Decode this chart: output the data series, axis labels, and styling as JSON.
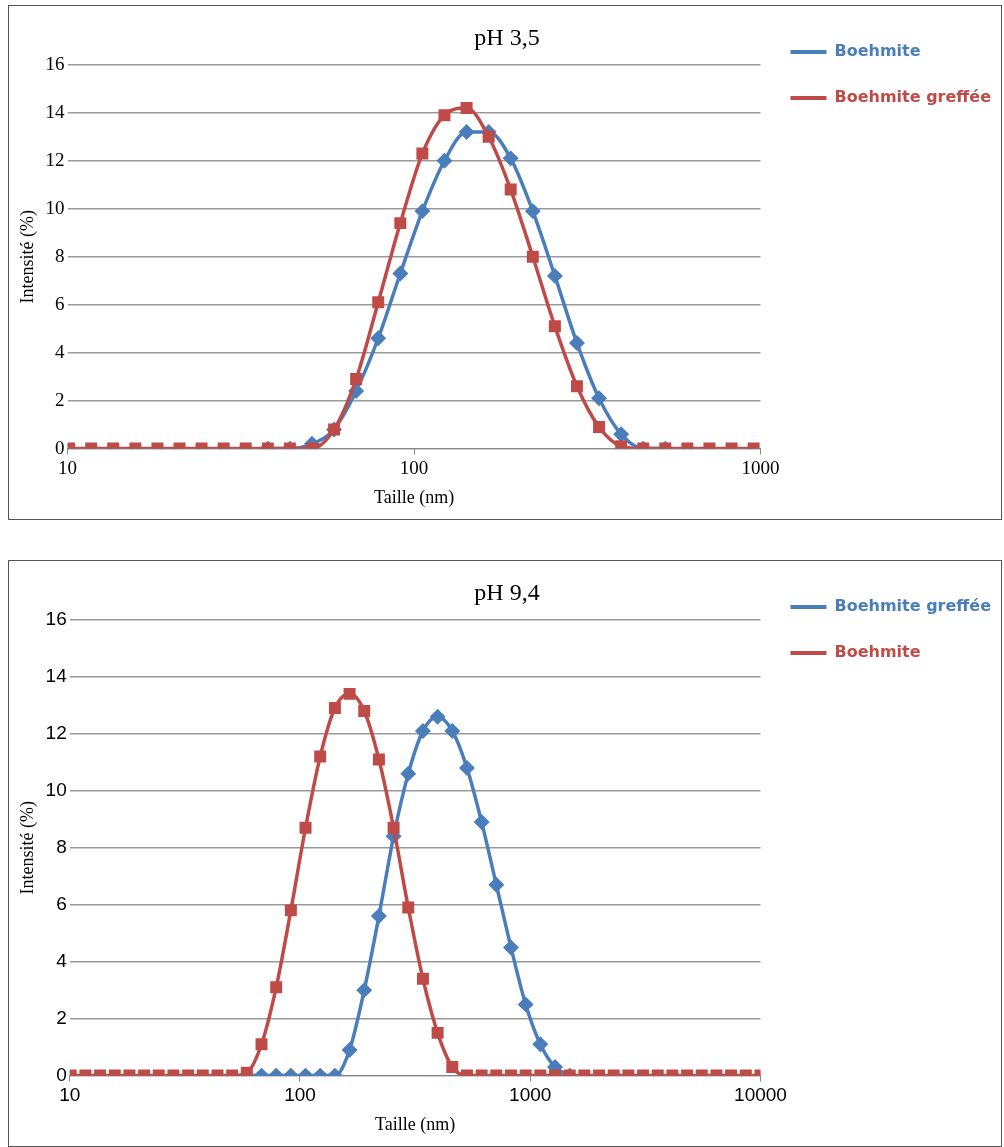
{
  "chart_data": [
    {
      "type": "line",
      "title": "pH 3,5",
      "xlabel": "Taille (nm)",
      "ylabel": "Intensité (%)",
      "log": "x",
      "xlim": [
        10,
        1000
      ],
      "xticks": [
        10,
        100,
        1000
      ],
      "ylim": [
        0,
        16
      ],
      "yticks": [
        0,
        2,
        4,
        6,
        8,
        10,
        12,
        14,
        16
      ],
      "grid": "y",
      "legend": "right",
      "x": [
        10.1,
        11.7,
        13.54,
        15.69,
        18.17,
        21.04,
        24.36,
        28.21,
        32.67,
        37.84,
        43.82,
        50.75,
        58.77,
        68.06,
        78.82,
        91.28,
        105.7,
        122.4,
        141.8,
        164.2,
        190.1,
        220.2,
        255,
        295.3,
        342,
        396.1,
        458.7,
        531.2,
        615.1,
        712.4,
        825,
        955.4
      ],
      "series": [
        {
          "name": "Boehmite",
          "color": "#4a7ebb",
          "marker": "diamond",
          "values": [
            null,
            null,
            null,
            null,
            null,
            null,
            null,
            null,
            null,
            0,
            0,
            0.2,
            0.8,
            2.4,
            4.6,
            7.3,
            9.9,
            12.0,
            13.2,
            13.2,
            12.1,
            9.9,
            7.2,
            4.4,
            2.1,
            0.6,
            0,
            0,
            null,
            null,
            null,
            null
          ]
        },
        {
          "name": "Boehmite greffée",
          "color": "#be4b48",
          "marker": "square",
          "values": [
            0,
            0,
            0,
            0,
            0,
            0,
            0,
            0,
            0,
            0,
            0,
            0,
            0.8,
            2.9,
            6.1,
            9.4,
            12.3,
            13.9,
            14.2,
            13.0,
            10.8,
            8.0,
            5.1,
            2.6,
            0.9,
            0.1,
            0,
            0,
            0,
            0,
            0,
            0
          ]
        }
      ]
    },
    {
      "type": "line",
      "title": "pH 9,4",
      "xlabel": "Taille (nm)",
      "ylabel": "Intensité (%)",
      "log": "x",
      "xlim": [
        10,
        10000
      ],
      "xticks": [
        10,
        100,
        1000,
        10000
      ],
      "ylim": [
        0,
        16
      ],
      "yticks": [
        0,
        2,
        4,
        6,
        8,
        10,
        12,
        14,
        16
      ],
      "grid": "y",
      "legend": "right",
      "x": [
        10.1,
        11.7,
        13.54,
        15.69,
        18.17,
        21.04,
        24.36,
        28.21,
        32.67,
        37.84,
        43.82,
        50.75,
        58.77,
        68.06,
        78.82,
        91.28,
        105.7,
        122.4,
        141.8,
        164.2,
        190.1,
        220.2,
        255,
        295.3,
        342,
        396.1,
        458.7,
        531.2,
        615.1,
        712.4,
        825,
        955.4,
        1106,
        1281,
        1484,
        1718,
        1990,
        2305,
        2669,
        3091,
        3580,
        4145,
        4801,
        5560,
        6439,
        7456,
        8635,
        10000
      ],
      "series": [
        {
          "name": "Boehmite greffée",
          "color": "#4a7ebb",
          "marker": "diamond",
          "values": [
            null,
            null,
            null,
            null,
            null,
            null,
            null,
            null,
            null,
            null,
            null,
            null,
            0,
            0,
            0,
            0,
            0,
            0,
            0,
            0.9,
            3.0,
            5.6,
            8.4,
            10.6,
            12.1,
            12.6,
            12.1,
            10.8,
            8.9,
            6.7,
            4.5,
            2.5,
            1.1,
            0.3,
            0,
            null,
            null,
            null,
            null,
            null,
            null,
            null,
            null,
            null,
            null,
            null,
            null,
            null
          ]
        },
        {
          "name": "Boehmite",
          "color": "#be4b48",
          "marker": "square",
          "values": [
            0,
            0,
            0,
            0,
            0,
            0,
            0,
            0,
            0,
            0,
            0,
            0,
            0.1,
            1.1,
            3.1,
            5.8,
            8.7,
            11.2,
            12.9,
            13.4,
            12.8,
            11.1,
            8.7,
            5.9,
            3.4,
            1.5,
            0.3,
            0,
            0,
            0,
            0,
            0,
            0,
            0,
            0,
            0,
            0,
            0,
            0,
            0,
            0,
            0,
            0,
            0,
            0,
            0,
            0,
            0
          ]
        }
      ]
    }
  ]
}
